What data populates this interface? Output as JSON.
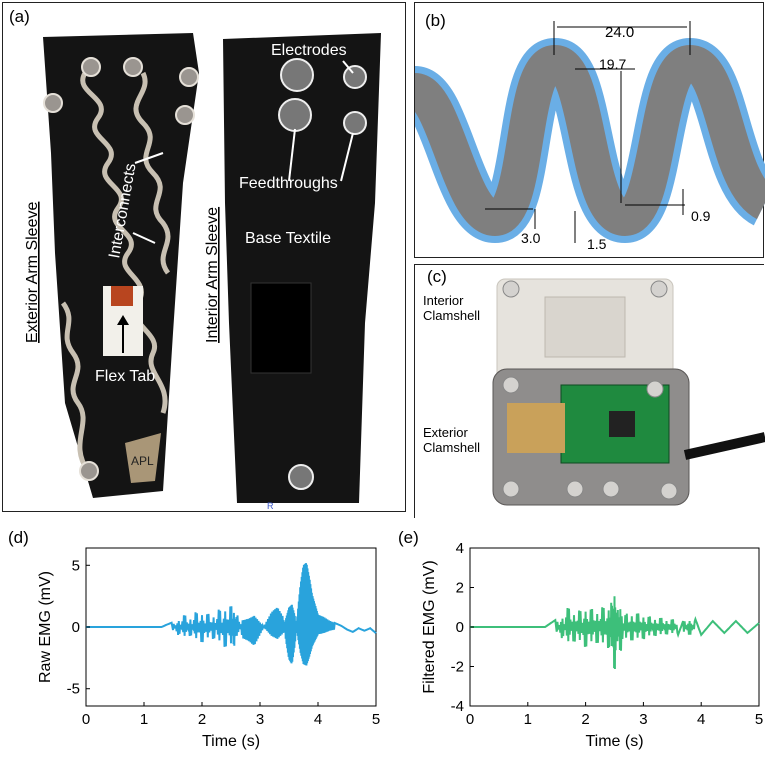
{
  "panels": {
    "a": {
      "label": "(a)",
      "exterior_title": "Exterior Arm Sleeve",
      "interior_title": "Interior Arm Sleeve",
      "annotations": {
        "electrodes": "Electrodes",
        "interconnects": "Interconnects",
        "feedthroughs": "Feedthroughs",
        "base_textile": "Base Textile",
        "flex_tab": "Flex Tab",
        "logo": "APL",
        "mark": "R"
      }
    },
    "b": {
      "label": "(b)",
      "dims": {
        "pitch": "24.0",
        "amplitude": "19.7",
        "width": "3.0",
        "gap": "1.5",
        "encap": "0.9"
      },
      "colors": {
        "trace": "#7f7f7f",
        "encapsulation": "#6aaee6"
      }
    },
    "c": {
      "label": "(c)",
      "interior": [
        "Interior",
        "Clamshell"
      ],
      "exterior": [
        "Exterior",
        "Clamshell"
      ]
    },
    "d": {
      "label": "(d)"
    },
    "e": {
      "label": "(e)"
    }
  },
  "chart_data": [
    {
      "type": "line",
      "panel": "d",
      "xlabel": "Time (s)",
      "ylabel": "Raw EMG (mV)",
      "xlim": [
        0,
        5
      ],
      "ylim": [
        -6.4,
        6.4
      ],
      "xticks": [
        0,
        1,
        2,
        3,
        4,
        5
      ],
      "yticks": [
        -5,
        0,
        5
      ],
      "color": "#29a3dc",
      "series": [
        {
          "x": [
            0,
            0.5,
            1.0,
            1.3,
            1.5,
            1.6,
            1.7,
            1.8,
            1.9,
            2.0,
            2.1,
            2.2,
            2.3,
            2.4,
            2.5,
            2.55,
            2.6,
            2.7,
            2.8,
            2.9,
            3.0,
            3.1,
            3.2,
            3.3,
            3.4,
            3.45,
            3.5,
            3.55,
            3.6,
            3.65,
            3.7,
            3.75,
            3.8,
            3.85,
            3.9,
            3.95,
            4.0,
            4.1,
            4.2,
            4.3,
            4.4,
            4.5,
            4.6,
            4.7,
            4.8,
            4.9,
            5.0
          ],
          "y": [
            0,
            0,
            0,
            0,
            0.4,
            -0.8,
            1.2,
            -1.0,
            1.5,
            -1.6,
            1.4,
            -1.3,
            1.8,
            -2.1,
            2.2,
            -1.9,
            1.2,
            -0.9,
            -1.1,
            -1.5,
            -0.6,
            0.3,
            1.2,
            1.6,
            0.8,
            -1.2,
            -2.6,
            -3.0,
            -1.5,
            1.2,
            3.5,
            5.0,
            5.2,
            4.0,
            2.6,
            1.8,
            1.0,
            0.8,
            0.5,
            0.3,
            0.1,
            -0.2,
            -0.4,
            -0.1,
            -0.3,
            -0.1,
            -0.5
          ]
        }
      ]
    },
    {
      "type": "line",
      "panel": "e",
      "xlabel": "Time (s)",
      "ylabel": "Filtered EMG (mV)",
      "xlim": [
        0,
        5
      ],
      "ylim": [
        -4,
        4
      ],
      "xticks": [
        0,
        1,
        2,
        3,
        4,
        5
      ],
      "yticks": [
        -4,
        -2,
        0,
        2,
        4
      ],
      "color": "#3dbf7a",
      "series": [
        {
          "x": [
            0,
            0.5,
            1.0,
            1.3,
            1.5,
            1.6,
            1.7,
            1.8,
            1.9,
            2.0,
            2.1,
            2.2,
            2.3,
            2.4,
            2.45,
            2.5,
            2.55,
            2.6,
            2.7,
            2.8,
            2.9,
            3.0,
            3.1,
            3.2,
            3.3,
            3.4,
            3.5,
            3.6,
            3.7,
            3.8,
            3.9,
            4.0,
            4.2,
            4.4,
            4.6,
            4.8,
            5.0
          ],
          "y": [
            0,
            0,
            0,
            0,
            0.4,
            -0.7,
            1.2,
            -1.0,
            1.1,
            -1.3,
            1.2,
            -1.1,
            1.3,
            -1.4,
            1.6,
            -2.6,
            1.2,
            -1.5,
            0.9,
            -0.9,
            0.9,
            -0.8,
            0.7,
            -0.6,
            0.6,
            -0.5,
            0.5,
            -0.4,
            0.4,
            -0.5,
            0.4,
            -0.4,
            0.3,
            -0.3,
            0.3,
            -0.3,
            0.2
          ]
        }
      ]
    }
  ]
}
